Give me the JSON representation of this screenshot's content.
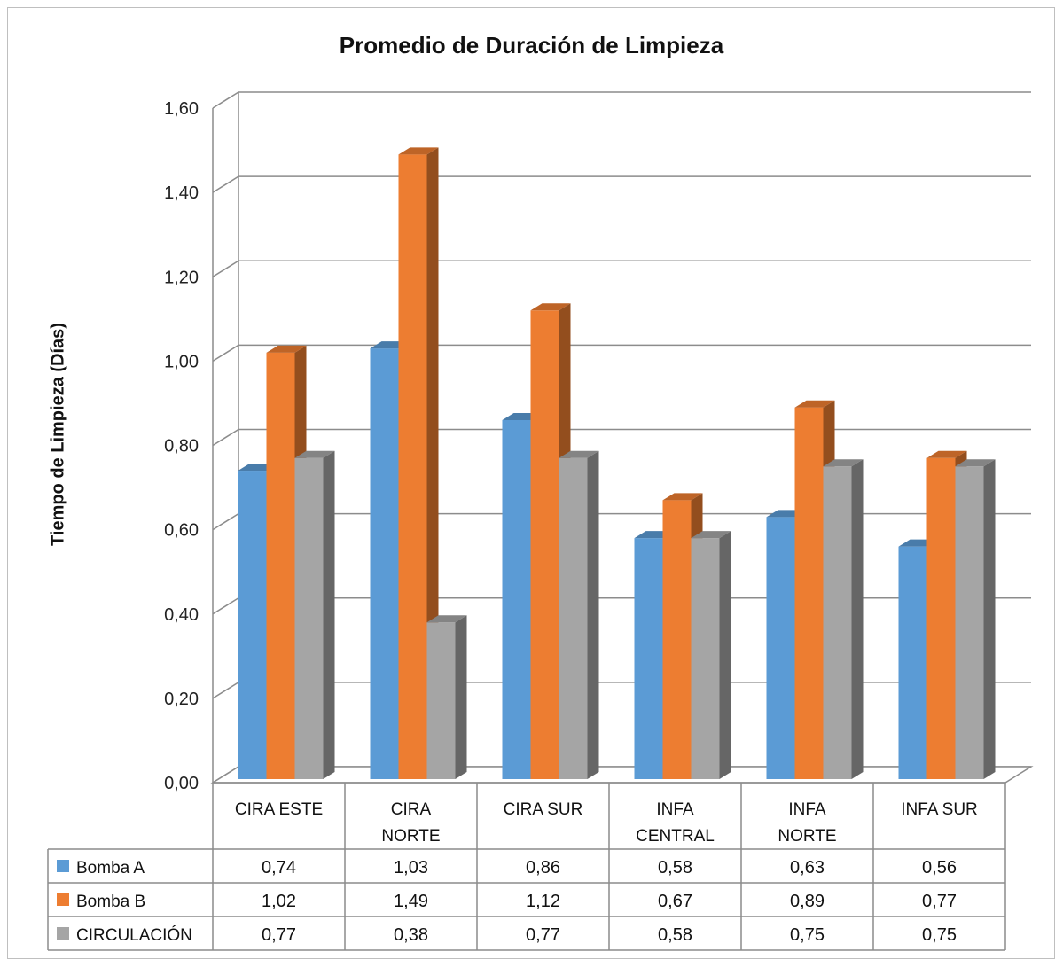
{
  "chart_data": {
    "type": "bar",
    "title": "Promedio de Duración de Limpieza",
    "ylabel": "Tiempo de Limpieza (Días)",
    "ylim": [
      0,
      1.6
    ],
    "yticks": [
      "0,00",
      "0,20",
      "0,40",
      "0,60",
      "0,80",
      "1,00",
      "1,20",
      "1,40",
      "1,60"
    ],
    "categories": [
      [
        "CIRA ESTE"
      ],
      [
        "CIRA",
        "NORTE"
      ],
      [
        "CIRA SUR"
      ],
      [
        "INFA",
        "CENTRAL"
      ],
      [
        "INFA",
        "NORTE"
      ],
      [
        "INFA SUR"
      ]
    ],
    "series": [
      {
        "name": "Bomba A",
        "color": "#5b9bd5",
        "values": [
          0.74,
          1.03,
          0.86,
          0.58,
          0.63,
          0.56
        ],
        "labels": [
          "0,74",
          "1,03",
          "0,86",
          "0,58",
          "0,63",
          "0,56"
        ]
      },
      {
        "name": "Bomba B",
        "color": "#ed7d31",
        "values": [
          1.02,
          1.49,
          1.12,
          0.67,
          0.89,
          0.77
        ],
        "labels": [
          "1,02",
          "1,49",
          "1,12",
          "0,67",
          "0,89",
          "0,77"
        ]
      },
      {
        "name": "CIRCULACIÓN",
        "color": "#a5a5a5",
        "values": [
          0.77,
          0.38,
          0.77,
          0.58,
          0.75,
          0.75
        ],
        "labels": [
          "0,77",
          "0,38",
          "0,77",
          "0,58",
          "0,75",
          "0,75"
        ]
      }
    ],
    "grid": true,
    "legend": "data-table",
    "style": "3d-clustered-column"
  }
}
